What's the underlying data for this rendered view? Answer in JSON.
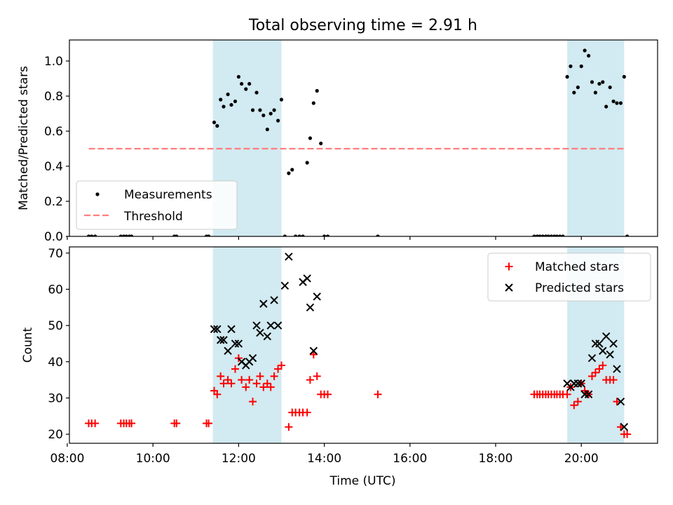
{
  "figure": {
    "title": "Total observing time = 2.91 h"
  },
  "chart_data": [
    {
      "type": "scatter",
      "ylabel": "Matched/Predicted stars",
      "xlim": [
        8.05,
        21.78
      ],
      "ylim": [
        0.0,
        1.12
      ],
      "yticks": [
        0.0,
        0.2,
        0.4,
        0.6,
        0.8,
        1.0
      ],
      "ytick_labels": [
        "0.0",
        "0.2",
        "0.4",
        "0.6",
        "0.8",
        "1.0"
      ],
      "shaded_intervals": [
        [
          11.4,
          13.0
        ],
        [
          19.67,
          21.0
        ]
      ],
      "shade_color": "#add8e6",
      "threshold": {
        "value": 0.5,
        "x_range": [
          8.5,
          21.0
        ],
        "color": "#ff7f7f"
      },
      "legend": {
        "position": "lower-left",
        "entries": [
          "Measurements",
          "Threshold"
        ]
      },
      "series": [
        {
          "name": "Measurements",
          "color": "#000000",
          "x": [
            8.5,
            8.57,
            8.65,
            9.25,
            9.32,
            9.38,
            9.45,
            9.5,
            10.5,
            10.55,
            11.25,
            11.3,
            11.43,
            11.5,
            11.58,
            11.65,
            11.75,
            11.83,
            11.92,
            12.0,
            12.07,
            12.17,
            12.25,
            12.33,
            12.42,
            12.5,
            12.58,
            12.67,
            12.75,
            12.83,
            12.92,
            13.0,
            13.08,
            13.17,
            13.25,
            13.33,
            13.42,
            13.5,
            13.6,
            13.67,
            13.75,
            13.83,
            13.92,
            14.0,
            14.08,
            15.25,
            18.9,
            18.97,
            19.03,
            19.1,
            19.17,
            19.23,
            19.3,
            19.37,
            19.43,
            19.5,
            19.57,
            19.67,
            19.75,
            19.83,
            19.92,
            20.0,
            20.08,
            20.17,
            20.25,
            20.33,
            20.42,
            20.5,
            20.58,
            20.67,
            20.75,
            20.83,
            20.92,
            21.0,
            21.07
          ],
          "y": [
            0,
            0,
            0,
            0,
            0,
            0,
            0,
            0,
            0,
            0,
            0,
            0,
            0.65,
            0.63,
            0.78,
            0.74,
            0.81,
            0.75,
            0.77,
            0.91,
            0.87,
            0.84,
            0.87,
            0.72,
            0.82,
            0.72,
            0.69,
            0.61,
            0.7,
            0.72,
            0.66,
            0.78,
            0,
            0.36,
            0.38,
            0,
            0,
            0,
            0.42,
            0.56,
            0.76,
            0.83,
            0.53,
            0,
            0,
            0,
            0,
            0,
            0,
            0,
            0,
            0,
            0,
            0,
            0,
            0,
            0,
            0.91,
            0.97,
            0.82,
            0.85,
            0.97,
            1.06,
            1.03,
            0.88,
            0.82,
            0.87,
            0.88,
            0.74,
            0.85,
            0.77,
            0.76,
            0.76,
            0.91,
            0
          ]
        }
      ]
    },
    {
      "type": "scatter",
      "xlabel": "Time (UTC)",
      "ylabel": "Count",
      "xlim": [
        8.05,
        21.78
      ],
      "ylim": [
        17.5,
        71.7
      ],
      "xticks": [
        8,
        10,
        12,
        14,
        16,
        18,
        20
      ],
      "xtick_labels": [
        "08:00",
        "10:00",
        "12:00",
        "14:00",
        "16:00",
        "18:00",
        "20:00"
      ],
      "yticks": [
        20,
        30,
        40,
        50,
        60,
        70
      ],
      "ytick_labels": [
        "20",
        "30",
        "40",
        "50",
        "60",
        "70"
      ],
      "shaded_intervals": [
        [
          11.4,
          13.0
        ],
        [
          19.67,
          21.0
        ]
      ],
      "shade_color": "#add8e6",
      "legend": {
        "position": "top-right",
        "entries": [
          "Matched stars",
          "Predicted stars"
        ]
      },
      "series": [
        {
          "name": "Matched stars",
          "marker": "plus",
          "color": "#ff0000",
          "x": [
            8.5,
            8.57,
            8.65,
            9.25,
            9.32,
            9.38,
            9.45,
            9.5,
            10.5,
            10.55,
            11.25,
            11.3,
            11.43,
            11.5,
            11.58,
            11.65,
            11.75,
            11.83,
            11.92,
            12.0,
            12.07,
            12.17,
            12.25,
            12.33,
            12.42,
            12.5,
            12.58,
            12.67,
            12.75,
            12.83,
            12.92,
            13.0,
            13.17,
            13.25,
            13.33,
            13.42,
            13.5,
            13.6,
            13.67,
            13.75,
            13.83,
            13.92,
            14.0,
            14.08,
            15.25,
            18.9,
            18.97,
            19.03,
            19.1,
            19.17,
            19.23,
            19.3,
            19.37,
            19.43,
            19.5,
            19.57,
            19.67,
            19.75,
            19.83,
            19.92,
            20.0,
            20.08,
            20.17,
            20.25,
            20.33,
            20.42,
            20.5,
            20.58,
            20.67,
            20.75,
            20.83,
            20.92,
            21.0,
            21.07
          ],
          "y": [
            23,
            23,
            23,
            23,
            23,
            23,
            23,
            23,
            23,
            23,
            23,
            23,
            32,
            31,
            36,
            34,
            35,
            34,
            38,
            41,
            35,
            33,
            35,
            29,
            34,
            36,
            33,
            34,
            33,
            36,
            38,
            39,
            22,
            26,
            26,
            26,
            26,
            26,
            35,
            42,
            36,
            31,
            31,
            31,
            31,
            31,
            31,
            31,
            31,
            31,
            31,
            31,
            31,
            31,
            31,
            31,
            31,
            33,
            28,
            29,
            34,
            32,
            31,
            36,
            37,
            38,
            39,
            35,
            35,
            35,
            29,
            22,
            20,
            20
          ]
        },
        {
          "name": "Predicted stars",
          "marker": "x",
          "color": "#000000",
          "x": [
            11.43,
            11.5,
            11.58,
            11.65,
            11.75,
            11.83,
            11.92,
            12.0,
            12.07,
            12.17,
            12.25,
            12.33,
            12.42,
            12.5,
            12.58,
            12.67,
            12.75,
            12.83,
            12.92,
            13.0,
            13.08,
            13.17,
            13.25,
            13.33,
            13.42,
            13.5,
            13.6,
            13.67,
            13.75,
            13.83,
            13.92,
            14.0,
            14.08,
            15.25,
            19.67,
            19.75,
            19.83,
            19.92,
            20.0,
            20.08,
            20.17,
            20.25,
            20.33,
            20.42,
            20.5,
            20.58,
            20.67,
            20.75,
            20.83,
            20.92,
            21.0
          ],
          "y": [
            49,
            49,
            46,
            46,
            43,
            49,
            45,
            45,
            40,
            39,
            40,
            41,
            50,
            48,
            56,
            47,
            50,
            57,
            50,
            null,
            61,
            69,
            null,
            null,
            null,
            62,
            63,
            55,
            43,
            58,
            null,
            null,
            null,
            null,
            34,
            33,
            34,
            34,
            34,
            31,
            31,
            41,
            45,
            45,
            43,
            47,
            42,
            45,
            38,
            29,
            22
          ]
        }
      ]
    }
  ]
}
